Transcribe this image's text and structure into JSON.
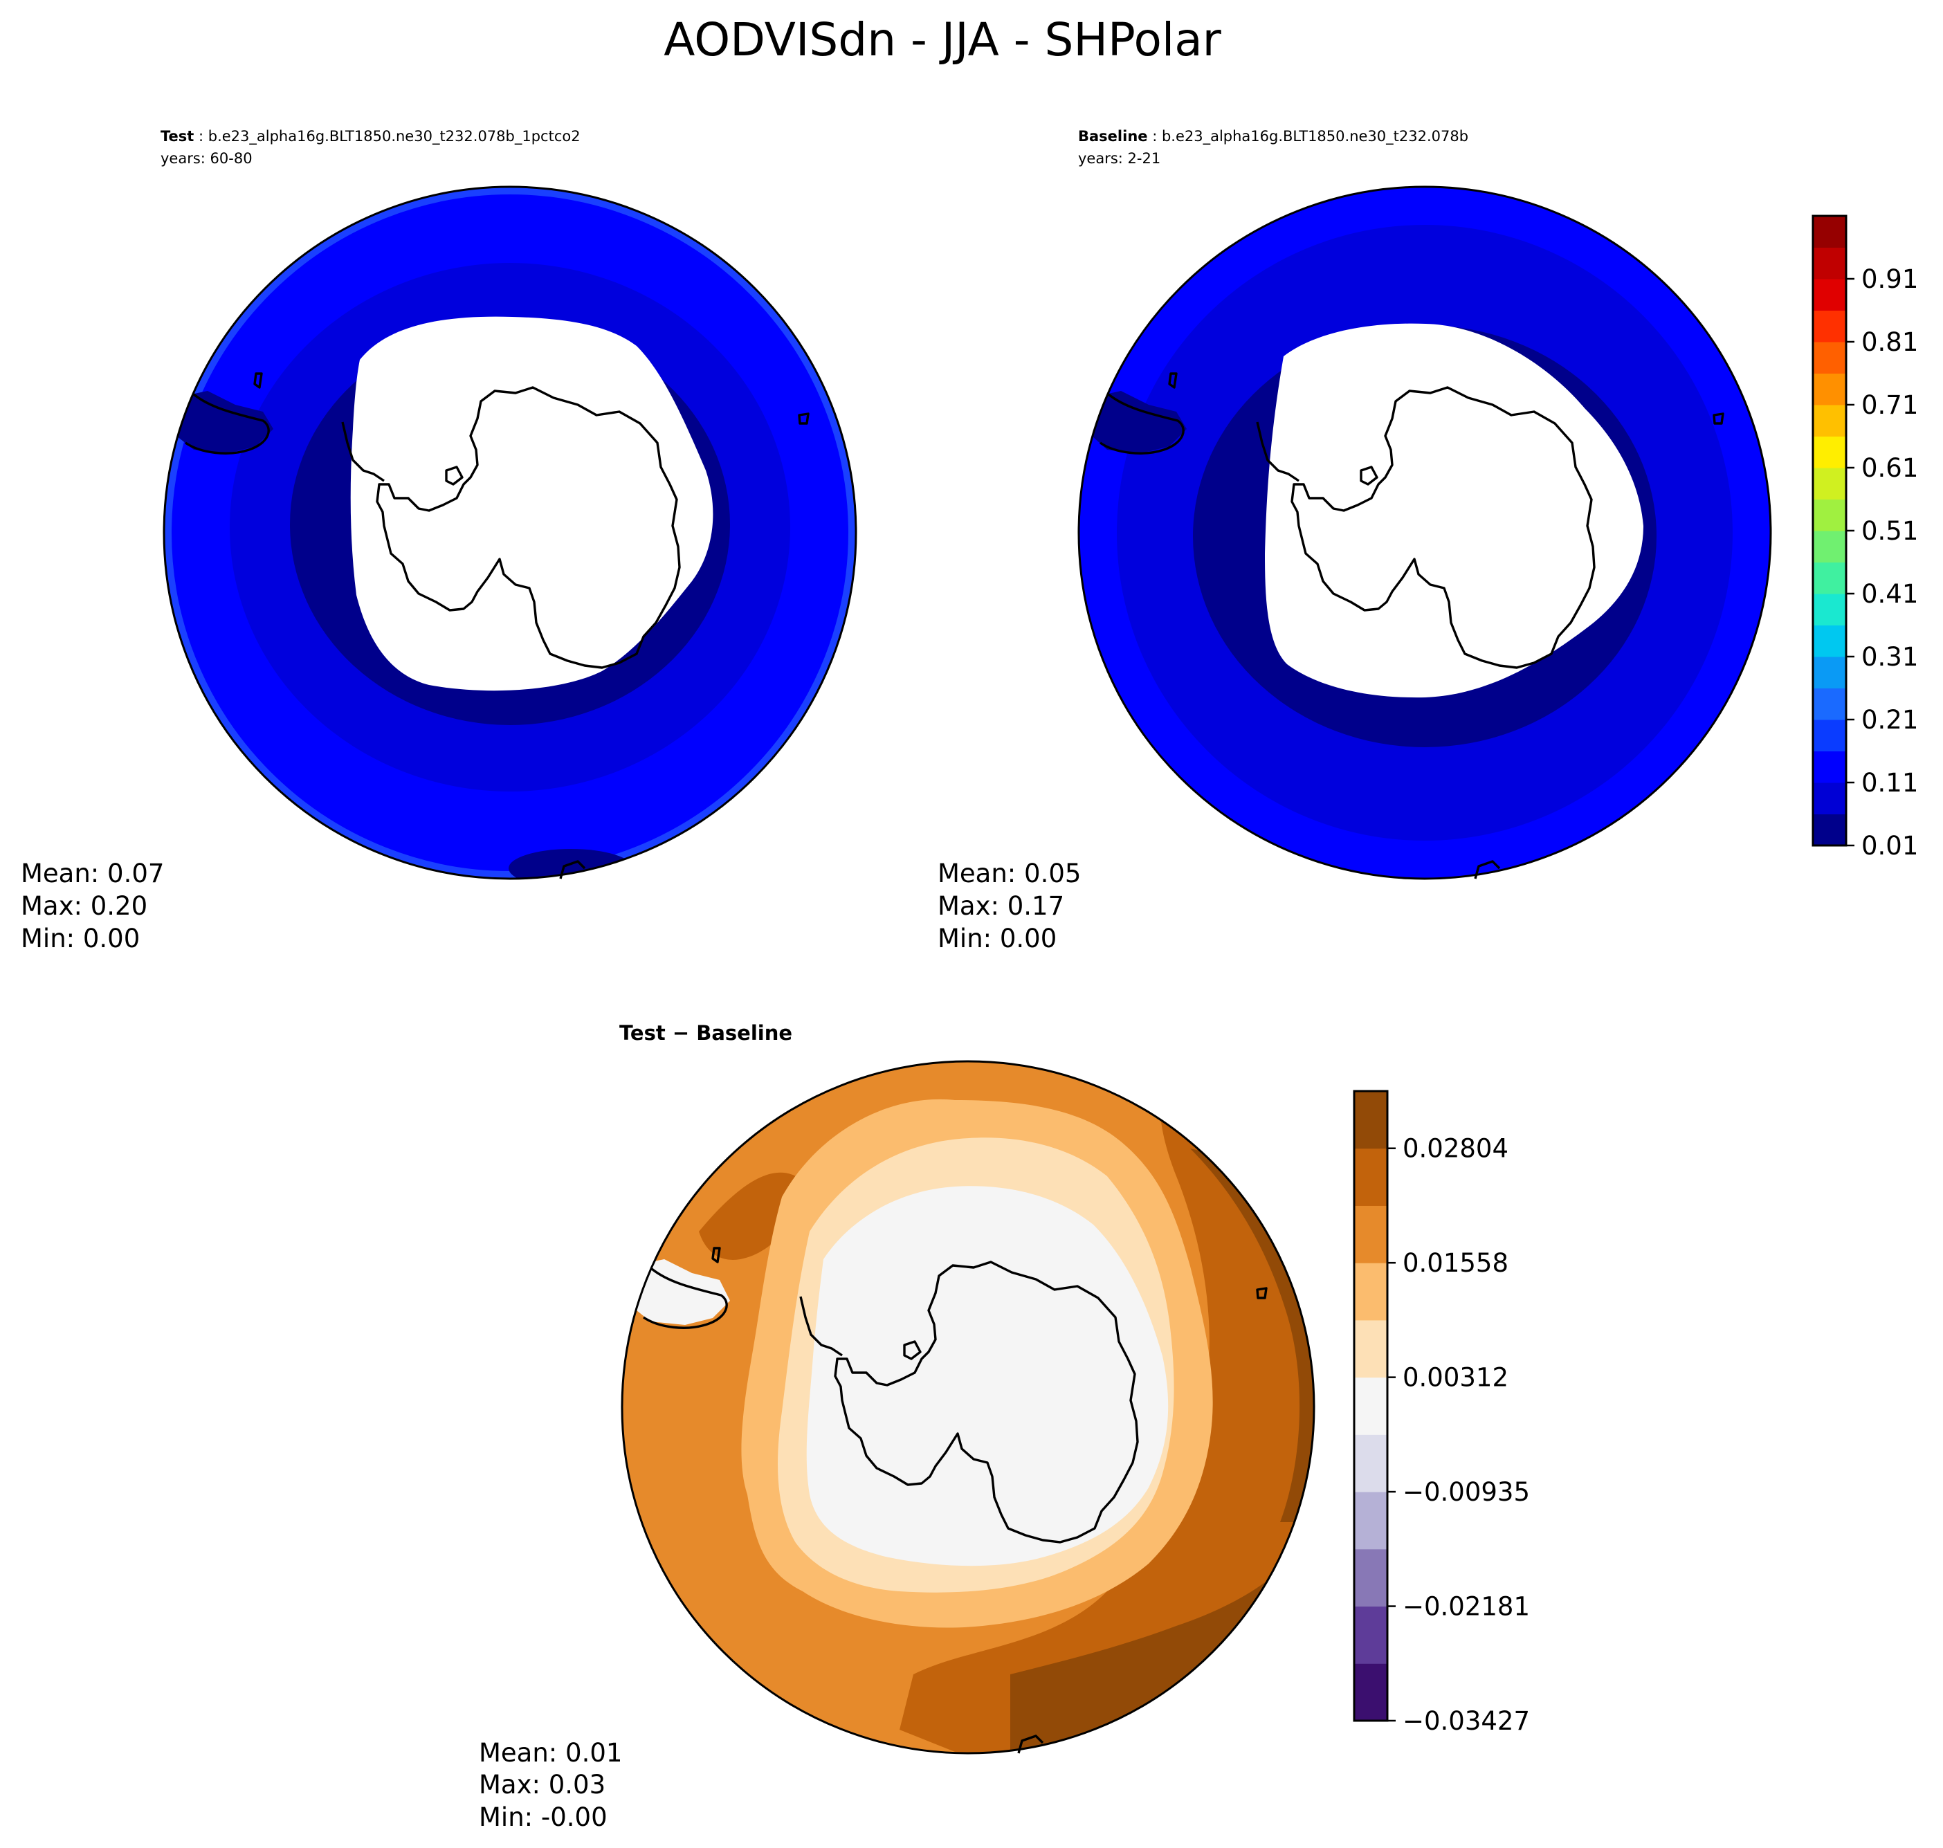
{
  "title": "AODVISdn - JJA - SHPolar",
  "panels": [
    {
      "id": "test",
      "header_bold": "Test",
      "header_text": " : b.e23_alpha16g.BLT1850.ne30_t232.078b_1pctco2",
      "header_line2": "years: 60-80",
      "stats": {
        "mean": "Mean:  0.07",
        "max": "Max:  0.20",
        "min": "Min:  0.00"
      }
    },
    {
      "id": "baseline",
      "header_bold": "Baseline",
      "header_text": " : b.e23_alpha16g.BLT1850.ne30_t232.078b",
      "header_line2": "years: 2-21",
      "stats": {
        "mean": "Mean:  0.05",
        "max": "Max:  0.17",
        "min": "Min:  0.00"
      }
    },
    {
      "id": "diff",
      "header_bold": "Test − Baseline",
      "stats": {
        "mean": "Mean:  0.01",
        "max": "Max:  0.03",
        "min": "Min: -0.00"
      }
    }
  ],
  "colorbar_main": {
    "ticks": [
      "0.01",
      "0.11",
      "0.21",
      "0.31",
      "0.41",
      "0.51",
      "0.61",
      "0.71",
      "0.81",
      "0.91"
    ],
    "colors": [
      "#00008b",
      "#0000d5",
      "#0000ff",
      "#0a3cff",
      "#1a6aff",
      "#0a9af5",
      "#00c8f0",
      "#1ae8d0",
      "#40f0a0",
      "#70f070",
      "#a0f040",
      "#d0f020",
      "#ffee00",
      "#ffc000",
      "#ff9000",
      "#ff6000",
      "#ff3000",
      "#e00000",
      "#c00000",
      "#960000"
    ]
  },
  "colorbar_diff": {
    "ticks": [
      "−0.03427",
      "−0.02181",
      "−0.00935",
      "0.00312",
      "0.01558",
      "0.02804"
    ],
    "colors": [
      "#3b0f6f",
      "#5e3c99",
      "#8878b6",
      "#b5b1d6",
      "#dcdceb",
      "#f5f5f5",
      "#fde0b6",
      "#fbbc6e",
      "#e68a2b",
      "#c2630c",
      "#924a07"
    ]
  }
}
